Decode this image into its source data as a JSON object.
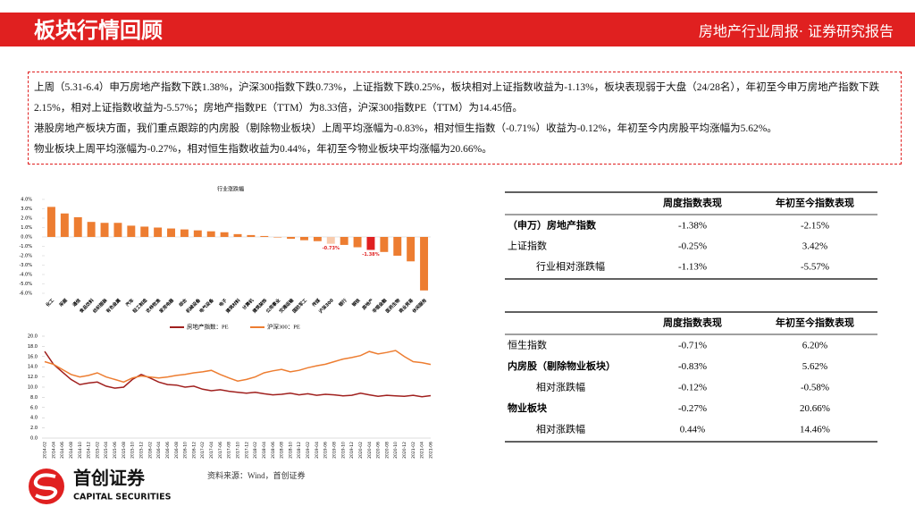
{
  "header": {
    "title": "板块行情回顾",
    "right": "房地产行业周报· 证券研究报告"
  },
  "summary": [
    "上周（5.31-6.4）申万房地产指数下跌1.38%，沪深300指数下跌0.73%，上证指数下跌0.25%，板块相对上证指数收益为-1.13%，板块表现弱于大盘（24/28名），年初至今申万房地产指数下跌2.15%，相对上证指数收益为-5.57%；房地产指数PE（TTM）为8.33倍，沪深300指数PE（TTM）为14.45倍。",
    "港股房地产板块方面，我们重点跟踪的内房股（剔除物业板块）上周平均涨幅为-0.83%，相对恒生指数（-0.71%）收益为-0.12%，年初至今内房股平均涨幅为5.62%。",
    "物业板块上周平均涨幅为-0.27%，相对恒生指数收益为0.44%，年初至今物业板块平均涨幅为20.66%。"
  ],
  "bar_chart": {
    "type": "bar",
    "title": "行业涨跌幅",
    "categories": [
      "化工",
      "采掘",
      "通信",
      "食品饮料",
      "纺织服装",
      "有色金属",
      "汽车",
      "轻工制造",
      "农林牧渔",
      "家用电器",
      "综合",
      "机械设备",
      "电气设备",
      "电子",
      "建筑材料",
      "计算机",
      "建筑装饰",
      "公用事业",
      "交通运输",
      "国防军工",
      "传媒",
      "沪深300",
      "银行",
      "钢铁",
      "房地产",
      "非银金融",
      "医药生物",
      "商业贸易",
      "休闲服务"
    ],
    "values": [
      3.2,
      2.5,
      2.1,
      1.6,
      1.5,
      1.5,
      1.2,
      1.1,
      1.0,
      0.9,
      0.8,
      0.7,
      0.6,
      0.5,
      0.3,
      0.2,
      0.1,
      -0.05,
      -0.2,
      -0.35,
      -0.45,
      -0.73,
      -0.85,
      -1.1,
      -1.38,
      -1.6,
      -2.0,
      -2.6,
      -5.7
    ],
    "value_labels": [
      null,
      null,
      null,
      null,
      null,
      null,
      null,
      null,
      null,
      null,
      null,
      null,
      null,
      null,
      null,
      null,
      null,
      null,
      null,
      null,
      null,
      "-0.73%",
      null,
      null,
      "-1.38%",
      null,
      null,
      null,
      null
    ],
    "colors": [
      "#ed7d31",
      "#ed7d31",
      "#ed7d31",
      "#ed7d31",
      "#ed7d31",
      "#ed7d31",
      "#ed7d31",
      "#ed7d31",
      "#ed7d31",
      "#ed7d31",
      "#ed7d31",
      "#ed7d31",
      "#ed7d31",
      "#ed7d31",
      "#ed7d31",
      "#ed7d31",
      "#ed7d31",
      "#ed7d31",
      "#ed7d31",
      "#ed7d31",
      "#ed7d31",
      "#f8cbad",
      "#ed7d31",
      "#ed7d31",
      "#e02020",
      "#ed7d31",
      "#ed7d31",
      "#ed7d31",
      "#ed7d31"
    ],
    "label_color": "#e02020",
    "ylim": [
      -6,
      4
    ],
    "yticks": [
      {
        "value": 4,
        "label": "4.0%"
      },
      {
        "value": 3,
        "label": "3.0%"
      },
      {
        "value": 2,
        "label": "2.0%"
      },
      {
        "value": 1,
        "label": "1.0%"
      },
      {
        "value": 0,
        "label": "0.0%"
      },
      {
        "value": -1,
        "label": "-1.0%"
      },
      {
        "value": -2,
        "label": "-2.0%"
      },
      {
        "value": -3,
        "label": "-3.0%"
      },
      {
        "value": -4,
        "label": "-4.0%"
      },
      {
        "value": -5,
        "label": "-5.0%"
      },
      {
        "value": -6,
        "label": "-6.0%"
      }
    ]
  },
  "line_chart": {
    "type": "line",
    "x": [
      "2014-02",
      "2014-04",
      "2014-06",
      "2014-08",
      "2014-10",
      "2014-12",
      "2015-02",
      "2015-04",
      "2015-06",
      "2015-08",
      "2015-10",
      "2015-12",
      "2016-02",
      "2016-04",
      "2016-06",
      "2016-08",
      "2016-10",
      "2016-12",
      "2017-02",
      "2017-04",
      "2017-06",
      "2017-08",
      "2017-10",
      "2017-12",
      "2018-02",
      "2018-04",
      "2018-06",
      "2018-08",
      "2018-10",
      "2018-12",
      "2019-02",
      "2019-04",
      "2019-06",
      "2019-08",
      "2019-10",
      "2019-12",
      "2020-02",
      "2020-04",
      "2020-06",
      "2020-08",
      "2020-10",
      "2020-12",
      "2021-02",
      "2021-04",
      "2021-06"
    ],
    "series": [
      {
        "name": "房地产指数：PE",
        "color": "#a0201e",
        "values": [
          17,
          14.5,
          13,
          11.5,
          10.5,
          10.8,
          11,
          10.2,
          9.8,
          10,
          11.5,
          12.5,
          11.8,
          11,
          10.5,
          10.4,
          10,
          10.2,
          9.6,
          9.3,
          9.5,
          9.2,
          9,
          8.8,
          9,
          8.7,
          8.5,
          8.6,
          8.8,
          8.5,
          8.7,
          8.4,
          8.6,
          8.5,
          8.3,
          8.4,
          8.8,
          8.5,
          8.2,
          8.4,
          8.3,
          8.2,
          8.4,
          8.1,
          8.33
        ]
      },
      {
        "name": "沪深300：PE",
        "color": "#ed7d31",
        "values": [
          15,
          14.5,
          13.5,
          12.5,
          12,
          12.3,
          12.8,
          12,
          11.5,
          11,
          11.8,
          12.2,
          12,
          11.8,
          12,
          12.3,
          12.5,
          12.8,
          13,
          13.3,
          12.5,
          11.8,
          11.2,
          11.5,
          12,
          12.8,
          13.2,
          13.5,
          13,
          13.3,
          13.8,
          14.2,
          14.5,
          15,
          15.5,
          15.8,
          16.2,
          17,
          16.5,
          16.8,
          17.2,
          16,
          15,
          14.8,
          14.45
        ]
      }
    ],
    "ylim": [
      0,
      20
    ],
    "yticks": [
      {
        "value": 0,
        "label": "0.0"
      },
      {
        "value": 2,
        "label": "2.0"
      },
      {
        "value": 4,
        "label": "4.0"
      },
      {
        "value": 6,
        "label": "6.0"
      },
      {
        "value": 8,
        "label": "8.0"
      },
      {
        "value": 10,
        "label": "10.0"
      },
      {
        "value": 12,
        "label": "12.0"
      },
      {
        "value": 14,
        "label": "14.0"
      },
      {
        "value": 16,
        "label": "16.0"
      },
      {
        "value": 18,
        "label": "18.0"
      },
      {
        "value": 20,
        "label": "20.0"
      }
    ]
  },
  "table1": {
    "columns": [
      "周度指数表现",
      "年初至今指数表现"
    ],
    "rows": [
      {
        "cells": [
          "（申万）房地产指数",
          "-1.38%",
          "-2.15%"
        ],
        "bold": true,
        "indent": 0
      },
      {
        "cells": [
          "上证指数",
          "-0.25%",
          "3.42%"
        ],
        "bold": false,
        "indent": 0
      },
      {
        "cells": [
          "行业相对涨跌幅",
          "-1.13%",
          "-5.57%"
        ],
        "bold": false,
        "indent": 1
      }
    ]
  },
  "table2": {
    "columns": [
      "周度指数表现",
      "年初至今指数表现"
    ],
    "rows": [
      {
        "cells": [
          "恒生指数",
          "-0.71%",
          "6.20%"
        ],
        "bold": false,
        "indent": 0
      },
      {
        "cells": [
          "内房股（剔除物业板块）",
          "-0.83%",
          "5.62%"
        ],
        "bold": true,
        "indent": 0
      },
      {
        "cells": [
          "相对涨跌幅",
          "-0.12%",
          "-0.58%"
        ],
        "bold": false,
        "indent": 1
      },
      {
        "cells": [
          "物业板块",
          "-0.27%",
          "20.66%"
        ],
        "bold": true,
        "indent": 0
      },
      {
        "cells": [
          "相对涨跌幅",
          "0.44%",
          "14.46%"
        ],
        "bold": false,
        "indent": 1
      }
    ]
  },
  "footer": {
    "logo_cn": "首创证券",
    "logo_en": "CAPITAL SECURITIES",
    "source": "资料来源：Wind，首创证券"
  }
}
